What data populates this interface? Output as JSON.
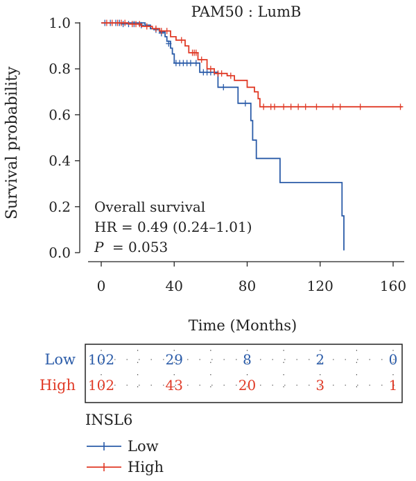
{
  "chart_data": {
    "type": "line",
    "subtype": "kaplan-meier",
    "title": "PAM50 : LumB",
    "xlabel": "Time (Months)",
    "ylabel": "Survival probability",
    "xlim": [
      0,
      165
    ],
    "ylim": [
      0,
      1.0
    ],
    "xticks": [
      "0",
      "40",
      "80",
      "120",
      "160"
    ],
    "yticks": [
      "0.0",
      "0.2",
      "0.4",
      "0.6",
      "0.8",
      "1.0"
    ],
    "annotation": {
      "line1": "Overall survival",
      "line2": "HR = 0.49 (0.24–1.01)",
      "p_label": "P",
      "p_value": "= 0.053"
    },
    "series": [
      {
        "name": "Low",
        "color": "#2a5ba8",
        "steps": [
          [
            0,
            1.0
          ],
          [
            24,
            1.0
          ],
          [
            24,
            0.99
          ],
          [
            27,
            0.99
          ],
          [
            27,
            0.975
          ],
          [
            32,
            0.975
          ],
          [
            32,
            0.96
          ],
          [
            35,
            0.96
          ],
          [
            35,
            0.94
          ],
          [
            36,
            0.94
          ],
          [
            36,
            0.92
          ],
          [
            38,
            0.92
          ],
          [
            38,
            0.89
          ],
          [
            39,
            0.89
          ],
          [
            39,
            0.865
          ],
          [
            40,
            0.865
          ],
          [
            40,
            0.825
          ],
          [
            54,
            0.825
          ],
          [
            54,
            0.785
          ],
          [
            64,
            0.785
          ],
          [
            64,
            0.72
          ],
          [
            75,
            0.72
          ],
          [
            75,
            0.65
          ],
          [
            82,
            0.65
          ],
          [
            82,
            0.575
          ],
          [
            83,
            0.575
          ],
          [
            83,
            0.49
          ],
          [
            85,
            0.49
          ],
          [
            85,
            0.41
          ],
          [
            98,
            0.41
          ],
          [
            98,
            0.305
          ],
          [
            132,
            0.305
          ],
          [
            132,
            0.16
          ],
          [
            133,
            0.16
          ],
          [
            133,
            0.01
          ]
        ],
        "censors": [
          [
            2,
            1.0
          ],
          [
            5,
            1.0
          ],
          [
            8,
            1.0
          ],
          [
            10,
            1.0
          ],
          [
            12,
            0.995
          ],
          [
            15,
            0.995
          ],
          [
            18,
            0.995
          ],
          [
            22,
            0.99
          ],
          [
            30,
            0.97
          ],
          [
            33,
            0.955
          ],
          [
            37,
            0.91
          ],
          [
            41,
            0.825
          ],
          [
            43,
            0.825
          ],
          [
            45,
            0.825
          ],
          [
            47,
            0.825
          ],
          [
            49,
            0.825
          ],
          [
            52,
            0.825
          ],
          [
            56,
            0.785
          ],
          [
            58,
            0.785
          ],
          [
            60,
            0.785
          ],
          [
            62,
            0.785
          ],
          [
            67,
            0.72
          ],
          [
            79,
            0.65
          ]
        ]
      },
      {
        "name": "High",
        "color": "#e03a26",
        "steps": [
          [
            0,
            1.0
          ],
          [
            15,
            1.0
          ],
          [
            15,
            0.995
          ],
          [
            22,
            0.995
          ],
          [
            22,
            0.985
          ],
          [
            28,
            0.985
          ],
          [
            28,
            0.975
          ],
          [
            32,
            0.975
          ],
          [
            32,
            0.965
          ],
          [
            38,
            0.965
          ],
          [
            38,
            0.94
          ],
          [
            41,
            0.94
          ],
          [
            41,
            0.925
          ],
          [
            46,
            0.925
          ],
          [
            46,
            0.9
          ],
          [
            48,
            0.9
          ],
          [
            48,
            0.87
          ],
          [
            53,
            0.87
          ],
          [
            53,
            0.84
          ],
          [
            58,
            0.84
          ],
          [
            58,
            0.8
          ],
          [
            62,
            0.8
          ],
          [
            62,
            0.78
          ],
          [
            69,
            0.78
          ],
          [
            69,
            0.77
          ],
          [
            73,
            0.77
          ],
          [
            73,
            0.75
          ],
          [
            80,
            0.75
          ],
          [
            80,
            0.72
          ],
          [
            84,
            0.72
          ],
          [
            84,
            0.7
          ],
          [
            86,
            0.7
          ],
          [
            86,
            0.67
          ],
          [
            87,
            0.67
          ],
          [
            87,
            0.635
          ],
          [
            165,
            0.635
          ]
        ],
        "censors": [
          [
            3,
            1.0
          ],
          [
            6,
            1.0
          ],
          [
            9,
            1.0
          ],
          [
            11,
            1.0
          ],
          [
            13,
            1.0
          ],
          [
            17,
            0.995
          ],
          [
            19,
            0.995
          ],
          [
            21,
            0.995
          ],
          [
            25,
            0.985
          ],
          [
            30,
            0.975
          ],
          [
            33,
            0.965
          ],
          [
            36,
            0.965
          ],
          [
            44,
            0.925
          ],
          [
            50,
            0.87
          ],
          [
            51,
            0.87
          ],
          [
            52,
            0.87
          ],
          [
            55,
            0.84
          ],
          [
            60,
            0.8
          ],
          [
            64,
            0.78
          ],
          [
            66,
            0.78
          ],
          [
            71,
            0.77
          ],
          [
            89,
            0.635
          ],
          [
            93,
            0.635
          ],
          [
            95,
            0.635
          ],
          [
            100,
            0.635
          ],
          [
            104,
            0.635
          ],
          [
            108,
            0.635
          ],
          [
            112,
            0.635
          ],
          [
            118,
            0.635
          ],
          [
            127,
            0.635
          ],
          [
            131,
            0.635
          ],
          [
            142,
            0.635
          ],
          [
            164,
            0.635
          ]
        ]
      }
    ],
    "risk_table": {
      "rows": [
        {
          "label": "Low",
          "color": "#2a5ba8",
          "counts": [
            "102",
            "29",
            "8",
            "2",
            "0"
          ]
        },
        {
          "label": "High",
          "color": "#e03a26",
          "counts": [
            "102",
            "43",
            "20",
            "3",
            "1"
          ]
        }
      ]
    },
    "legend": {
      "title": "INSL6",
      "placement": "bottom-left",
      "entries": [
        "Low",
        "High"
      ]
    }
  }
}
